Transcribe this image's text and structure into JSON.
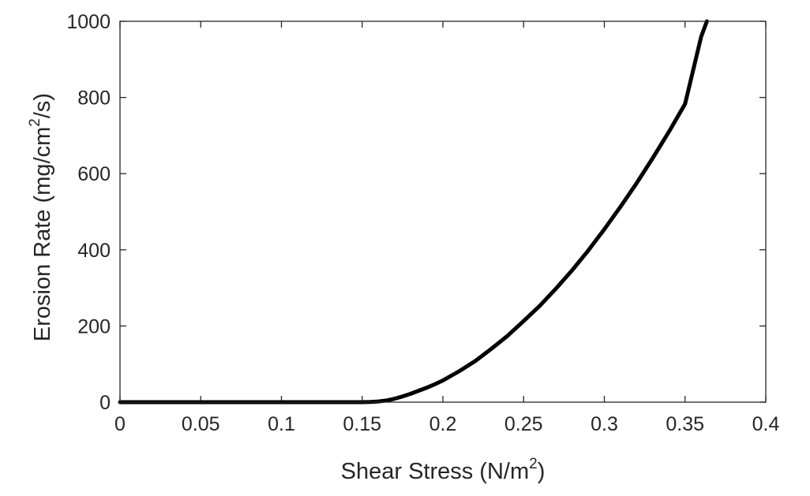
{
  "chart_data": {
    "type": "line",
    "xlabel": "Shear Stress (N/m2)",
    "xlabel_parts": {
      "before": "Shear Stress (N/m",
      "superscript": "2",
      "after": ")"
    },
    "ylabel": "Erosion Rate (mg/cm2/s)",
    "ylabel_parts": {
      "before": "Erosion Rate (mg/cm",
      "superscript": "2",
      "after": "/s)"
    },
    "xlim": [
      0,
      0.4
    ],
    "ylim": [
      0,
      1000
    ],
    "xticks": [
      0,
      0.05,
      0.1,
      0.15,
      0.2,
      0.25,
      0.3,
      0.35,
      0.4
    ],
    "xtick_labels": [
      "0",
      "0.05",
      "0.1",
      "0.15",
      "0.2",
      "0.25",
      "0.3",
      "0.35",
      "0.4"
    ],
    "yticks": [
      0,
      200,
      400,
      600,
      800,
      1000
    ],
    "ytick_labels": [
      "0",
      "200",
      "400",
      "600",
      "800",
      "1000"
    ],
    "grid": false,
    "box": true,
    "series": [
      {
        "color": "#000000",
        "x": [
          0,
          0.02,
          0.05,
          0.1,
          0.15,
          0.155,
          0.16,
          0.165,
          0.17,
          0.175,
          0.18,
          0.185,
          0.19,
          0.195,
          0.2,
          0.21,
          0.22,
          0.23,
          0.24,
          0.25,
          0.26,
          0.27,
          0.28,
          0.29,
          0.3,
          0.31,
          0.32,
          0.33,
          0.34,
          0.35,
          0.36,
          0.3635
        ],
        "y": [
          0,
          0,
          0,
          0,
          0,
          0.5,
          1.8,
          4.3,
          9,
          15,
          22,
          30,
          38,
          47,
          57,
          81,
          108,
          140,
          174,
          213,
          253,
          298,
          346,
          398,
          454,
          513,
          575,
          641,
          710,
          783,
          960,
          1000
        ]
      }
    ]
  }
}
